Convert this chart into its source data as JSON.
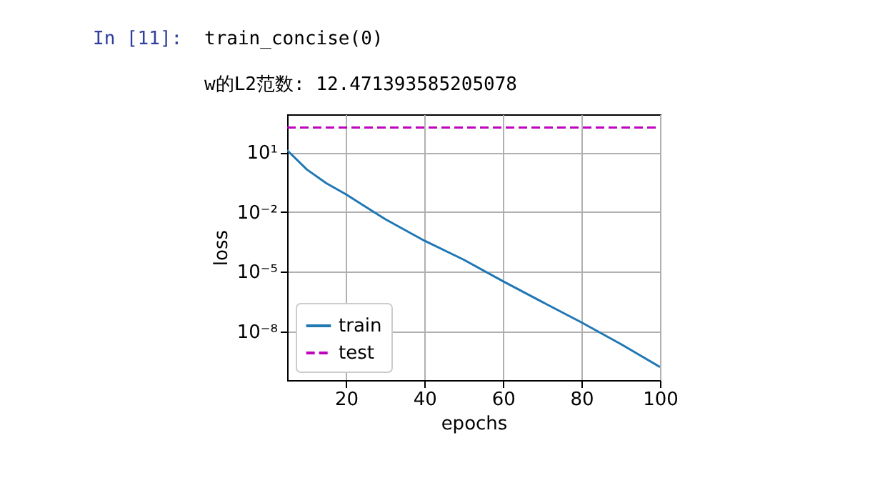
{
  "chart_data": {
    "type": "line",
    "annotations": [
      "In [11]:",
      "train_concise(0)",
      "w的L2范数:  12.471393585205078"
    ],
    "xlabel": "epochs",
    "ylabel": "loss",
    "log": "y",
    "grid": true,
    "legend": "bottom left",
    "xlim": [
      5,
      100
    ],
    "xticks": [
      20,
      40,
      60,
      80,
      100
    ],
    "ylim": [
      3.5e-11,
      830
    ],
    "yticks": [
      {
        "value": 10,
        "label": "10¹"
      },
      {
        "value": 0.01,
        "label": "10⁻²"
      },
      {
        "value": 1e-05,
        "label": "10⁻⁵"
      },
      {
        "value": 1e-08,
        "label": "10⁻⁸"
      }
    ],
    "series": [
      {
        "name": "train",
        "color": "#1f77b4",
        "line_style": "solid",
        "x": [
          5,
          10,
          15,
          20,
          30,
          40,
          50,
          60,
          70,
          80,
          90,
          100
        ],
        "values": [
          13,
          1.4,
          0.28,
          0.078,
          0.0044,
          0.00036,
          4e-05,
          3.3e-06,
          3e-07,
          2.8e-08,
          2.3e-09,
          1.6e-10
        ]
      },
      {
        "name": "test",
        "color": "#bf00bf",
        "line_style": "dashed",
        "x": [
          5,
          100
        ],
        "values": [
          178,
          178
        ]
      }
    ]
  }
}
